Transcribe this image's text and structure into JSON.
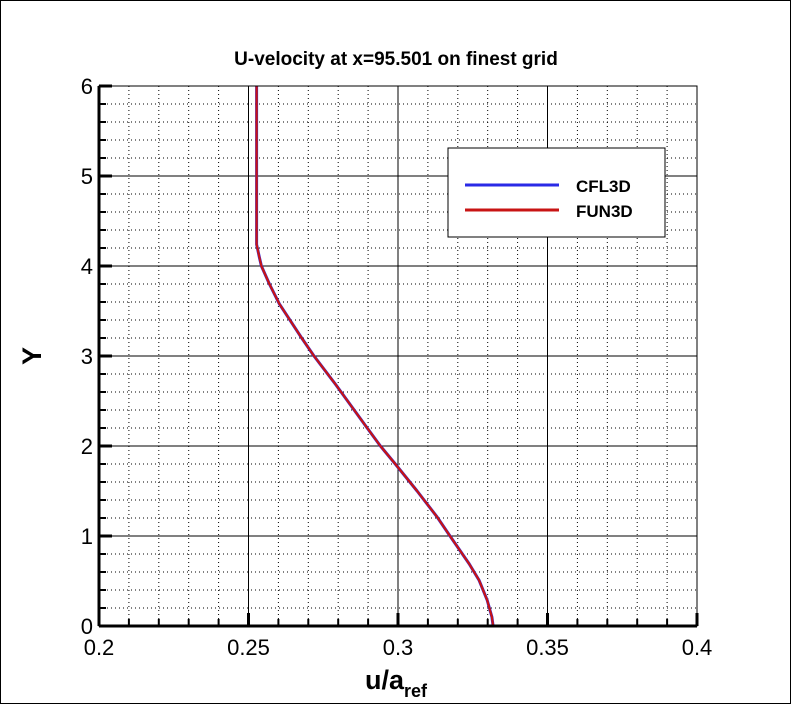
{
  "chart_data": {
    "type": "line",
    "title": "U-velocity at x=95.501 on finest grid",
    "xlabel": "u/a",
    "xlabel_subscript": "ref",
    "ylabel": "Y",
    "xlim": [
      0.2,
      0.4
    ],
    "ylim": [
      0,
      6
    ],
    "x_ticks": [
      "0.2",
      "0.25",
      "0.3",
      "0.35",
      "0.4"
    ],
    "y_ticks": [
      "0",
      "1",
      "2",
      "3",
      "4",
      "5",
      "6"
    ],
    "grid": {
      "major": "solid",
      "minor": "dotted"
    },
    "legend_position": "top-right",
    "series": [
      {
        "name": "CFL3D",
        "color": "#2a2ae6",
        "x": [
          0.3318,
          0.3314,
          0.3298,
          0.3271,
          0.3238,
          0.3174,
          0.3131,
          0.3064,
          0.2991,
          0.2941,
          0.2897,
          0.279,
          0.2719,
          0.2676,
          0.2603,
          0.257,
          0.2543,
          0.2536,
          0.2527,
          0.2527
        ],
        "y": [
          0,
          0.1,
          0.29,
          0.51,
          0.69,
          1.0,
          1.21,
          1.5,
          1.8,
          2.0,
          2.2,
          2.69,
          3.0,
          3.21,
          3.58,
          3.8,
          4.0,
          4.1,
          4.24,
          6.0
        ]
      },
      {
        "name": "FUN3D",
        "color": "#c81414",
        "x": [
          0.3318,
          0.3314,
          0.3298,
          0.3271,
          0.3238,
          0.3174,
          0.3131,
          0.3064,
          0.2991,
          0.2941,
          0.2897,
          0.279,
          0.2719,
          0.2676,
          0.2603,
          0.257,
          0.2543,
          0.2536,
          0.2527,
          0.2527
        ],
        "y": [
          0,
          0.1,
          0.29,
          0.51,
          0.69,
          1.0,
          1.21,
          1.5,
          1.8,
          2.0,
          2.2,
          2.69,
          3.0,
          3.21,
          3.58,
          3.8,
          4.0,
          4.1,
          4.24,
          6.0
        ]
      }
    ]
  }
}
